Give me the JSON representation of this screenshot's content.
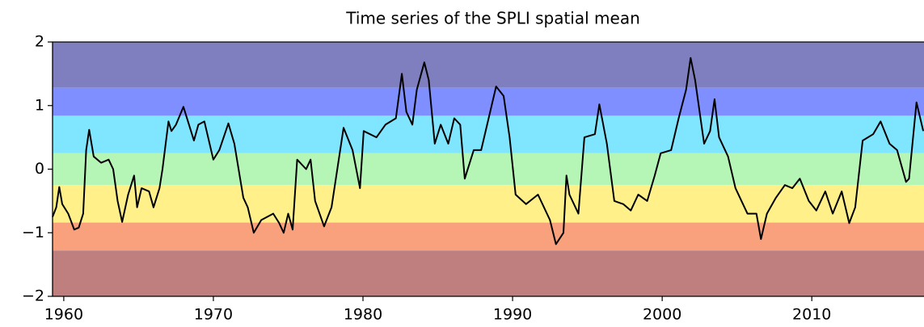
{
  "chart_data": {
    "type": "line",
    "title": "Time series of the SPLI spatial mean",
    "x": [
      1959.25,
      1959.5,
      1959.7,
      1959.9,
      1960.3,
      1960.7,
      1961.0,
      1961.3,
      1961.5,
      1961.7,
      1962.0,
      1962.5,
      1963.0,
      1963.3,
      1963.6,
      1963.9,
      1964.3,
      1964.7,
      1964.9,
      1965.2,
      1965.7,
      1966.0,
      1966.4,
      1966.6,
      1967.0,
      1967.2,
      1967.5,
      1968.0,
      1968.7,
      1969.0,
      1969.4,
      1970.0,
      1970.4,
      1971.0,
      1971.4,
      1972.0,
      1972.3,
      1972.7,
      1973.2,
      1974.0,
      1974.4,
      1974.7,
      1975.0,
      1975.3,
      1975.6,
      1976.2,
      1976.5,
      1976.8,
      1977.4,
      1977.9,
      1978.7,
      1979.3,
      1979.8,
      1980.05,
      1980.9,
      1981.5,
      1982.2,
      1982.6,
      1982.9,
      1983.3,
      1983.6,
      1984.1,
      1984.4,
      1984.8,
      1985.2,
      1985.7,
      1986.1,
      1986.5,
      1986.8,
      1987.4,
      1987.9,
      1988.5,
      1988.9,
      1989.4,
      1989.8,
      1990.2,
      1990.9,
      1991.7,
      1992.5,
      1992.9,
      1993.4,
      1993.6,
      1993.8,
      1994.4,
      1994.8,
      1995.5,
      1995.8,
      1996.3,
      1996.8,
      1997.4,
      1997.9,
      1998.4,
      1999.0,
      1999.5,
      1999.9,
      2000.6,
      2001.1,
      2001.6,
      2001.9,
      2002.2,
      2002.8,
      2003.2,
      2003.5,
      2003.8,
      2004.4,
      2004.9,
      2005.7,
      2006.3,
      2006.6,
      2007.0,
      2007.6,
      2008.2,
      2008.7,
      2009.2,
      2009.8,
      2010.3,
      2010.9,
      2011.4,
      2012.0,
      2012.5,
      2012.9,
      2013.4,
      2014.1,
      2014.6,
      2015.2,
      2015.7,
      2016.3,
      2016.5,
      2017.0,
      2017.45
    ],
    "series": [
      {
        "color": "#000000",
        "values": [
          -0.75,
          -0.6,
          -0.28,
          -0.55,
          -0.7,
          -0.95,
          -0.92,
          -0.7,
          0.3,
          0.62,
          0.2,
          0.1,
          0.15,
          0.0,
          -0.5,
          -0.83,
          -0.4,
          -0.1,
          -0.6,
          -0.3,
          -0.35,
          -0.6,
          -0.3,
          0.0,
          0.75,
          0.6,
          0.7,
          0.98,
          0.45,
          0.7,
          0.75,
          0.15,
          0.3,
          0.72,
          0.4,
          -0.45,
          -0.6,
          -1.0,
          -0.8,
          -0.7,
          -0.85,
          -1.0,
          -0.7,
          -0.95,
          0.15,
          0.0,
          0.15,
          -0.5,
          -0.9,
          -0.6,
          0.65,
          0.3,
          -0.3,
          0.6,
          0.5,
          0.7,
          0.8,
          1.5,
          0.9,
          0.7,
          1.25,
          1.68,
          1.4,
          0.4,
          0.7,
          0.4,
          0.8,
          0.7,
          -0.15,
          0.3,
          0.3,
          0.9,
          1.3,
          1.15,
          0.5,
          -0.4,
          -0.55,
          -0.4,
          -0.8,
          -1.18,
          -1.0,
          -0.1,
          -0.4,
          -0.7,
          0.5,
          0.55,
          1.02,
          0.4,
          -0.5,
          -0.55,
          -0.65,
          -0.4,
          -0.5,
          -0.1,
          0.25,
          0.3,
          0.8,
          1.25,
          1.75,
          1.4,
          0.4,
          0.6,
          1.1,
          0.5,
          0.2,
          -0.3,
          -0.7,
          -0.7,
          -1.1,
          -0.7,
          -0.45,
          -0.25,
          -0.3,
          -0.15,
          -0.5,
          -0.65,
          -0.35,
          -0.7,
          -0.35,
          -0.85,
          -0.6,
          0.45,
          0.55,
          0.75,
          0.4,
          0.3,
          -0.2,
          -0.15,
          1.05,
          0.6
        ]
      }
    ],
    "bands": [
      {
        "from": 1.28,
        "to": 2,
        "color": "#7f7fbf"
      },
      {
        "from": 0.84,
        "to": 1.28,
        "color": "#7f8fff"
      },
      {
        "from": 0.25,
        "to": 0.84,
        "color": "#80e5ff"
      },
      {
        "from": -0.25,
        "to": 0.25,
        "color": "#b5f5b5"
      },
      {
        "from": -0.84,
        "to": -0.25,
        "color": "#fff08a"
      },
      {
        "from": -1.28,
        "to": -0.84,
        "color": "#f9a07c"
      },
      {
        "from": -2,
        "to": -1.28,
        "color": "#bf7f7f"
      }
    ],
    "xlim": [
      1959.25,
      2017.5
    ],
    "ylim": [
      -2,
      2
    ],
    "xticks": [
      1960,
      1970,
      1980,
      1990,
      2000,
      2010
    ],
    "yticks": [
      {
        "value": -2,
        "label": "−2"
      },
      {
        "value": -1,
        "label": "−1"
      },
      0,
      1,
      2
    ]
  }
}
